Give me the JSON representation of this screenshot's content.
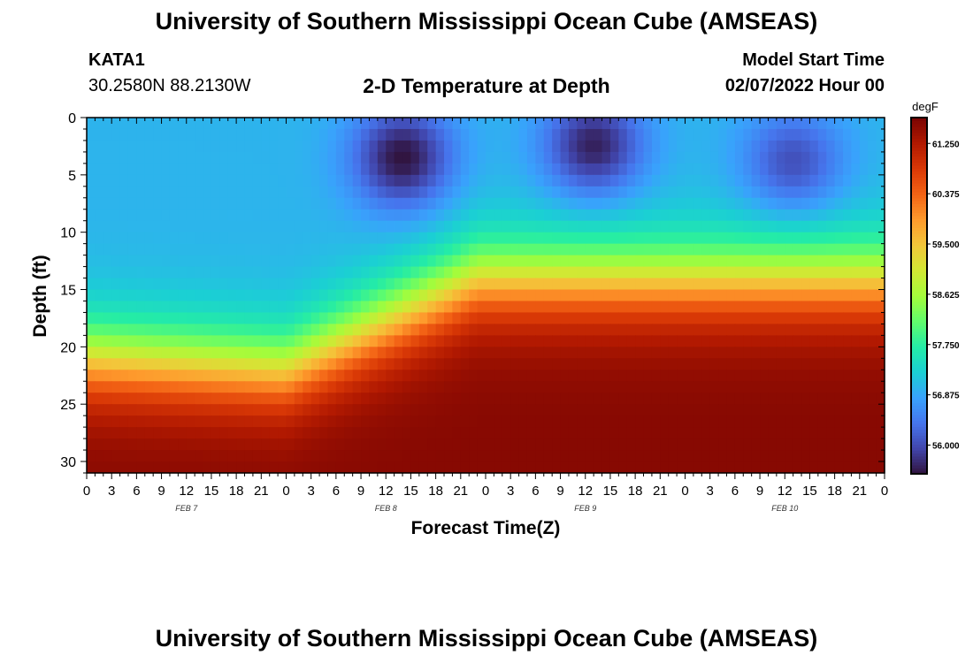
{
  "header": {
    "title": "University of Southern Mississippi Ocean Cube (AMSEAS)",
    "station_id": "KATA1",
    "coordinates": "30.2580N  88.2130W",
    "subtitle": "2-D Temperature at Depth",
    "model_start_label": "Model Start Time",
    "model_start_value": "02/07/2022 Hour 00"
  },
  "footer": {
    "repeated_title": "University of Southern Mississippi Ocean Cube (AMSEAS)"
  },
  "chart_data": {
    "type": "heatmap",
    "xlabel": "Forecast Time(Z)",
    "ylabel": "Depth (ft)",
    "x_ticks": [
      "0",
      "3",
      "6",
      "9",
      "12",
      "15",
      "18",
      "21",
      "0",
      "3",
      "6",
      "9",
      "12",
      "15",
      "18",
      "21",
      "0",
      "3",
      "6",
      "9",
      "12",
      "15",
      "18",
      "21",
      "0",
      "3",
      "6",
      "9",
      "12",
      "15",
      "18",
      "21",
      "0"
    ],
    "day_labels": [
      {
        "label": "FEB 7",
        "hour": 12
      },
      {
        "label": "FEB 8",
        "hour": 36
      },
      {
        "label": "FEB 9",
        "hour": 60
      },
      {
        "label": "FEB 10",
        "hour": 84
      }
    ],
    "xlim_hours": [
      0,
      96
    ],
    "y_ticks": [
      0,
      5,
      10,
      15,
      20,
      25,
      30
    ],
    "ylim_ft": [
      0,
      31
    ],
    "y_inverted": true,
    "colorbar": {
      "unit": "degF",
      "ticks": [
        "61.250",
        "60.375",
        "59.500",
        "58.625",
        "57.750",
        "56.875",
        "56.000"
      ],
      "range": [
        55.5,
        61.7
      ],
      "colors": [
        "#30123b",
        "#4145ab",
        "#4675ed",
        "#39a2fc",
        "#1bcfd4",
        "#24eca6",
        "#61fc6c",
        "#a4fc3b",
        "#d1e834",
        "#f3c63a",
        "#fe9b2d",
        "#f36315",
        "#d93806",
        "#b11901",
        "#7a0402"
      ]
    },
    "temperature_model": {
      "mixed_layer_hours": [
        0,
        24,
        47,
        71,
        96
      ],
      "mixed_layer_depth_ft": [
        21,
        22,
        14,
        14,
        14
      ],
      "cold_spots": [
        {
          "hour": 38,
          "depth_ft": 3.5,
          "temp": 55.5
        },
        {
          "hour": 61,
          "depth_ft": 2.5,
          "temp": 55.6
        },
        {
          "hour": 85,
          "depth_ft": 4,
          "temp": 56.0
        }
      ],
      "surface_temp": 57.0,
      "bottom_temp": 61.6
    }
  }
}
